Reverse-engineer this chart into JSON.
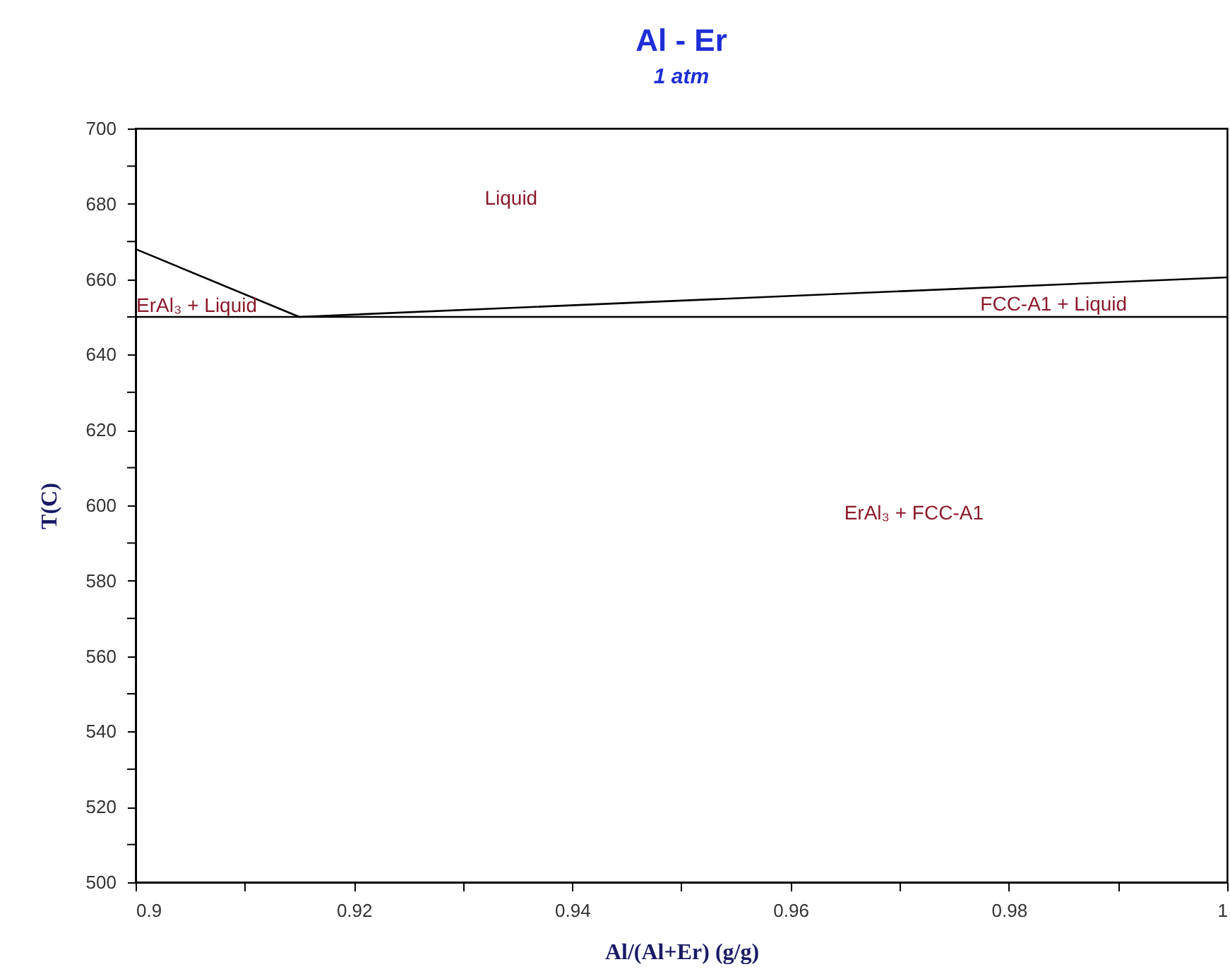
{
  "chart_data": {
    "type": "line",
    "title": "Al - Er",
    "subtitle": "1 atm",
    "xlabel": "Al/(Al+Er) (g/g)",
    "ylabel": "T(C)",
    "series": [
      {
        "color": "#000000",
        "x": [
          0.9,
          0.915,
          1.0
        ],
        "values": [
          668,
          650,
          660.5
        ]
      }
    ],
    "ref_lines": [
      {
        "axis": "y",
        "value": 650,
        "color": "#000000"
      }
    ],
    "xlim": [
      0.9,
      1.0
    ],
    "ylim": [
      500,
      700
    ],
    "xticks": [
      0.9,
      {
        "value": 0.91,
        "label": null
      },
      0.92,
      {
        "value": 0.93,
        "label": null
      },
      0.94,
      {
        "value": 0.95,
        "label": null
      },
      0.96,
      {
        "value": 0.97,
        "label": null
      },
      0.98,
      {
        "value": 0.99,
        "label": null
      },
      1
    ],
    "yticks": [
      500,
      {
        "value": 510,
        "label": null
      },
      520,
      {
        "value": 530,
        "label": null
      },
      540,
      {
        "value": 550,
        "label": null
      },
      560,
      {
        "value": 570,
        "label": null
      },
      580,
      {
        "value": 590,
        "label": null
      },
      600,
      {
        "value": 610,
        "label": null
      },
      620,
      {
        "value": 630,
        "label": null
      },
      640,
      {
        "value": 650,
        "label": null
      },
      660,
      {
        "value": 670,
        "label": null
      },
      680,
      {
        "value": 690,
        "label": null
      },
      700
    ],
    "annotations": [
      "Liquid",
      "ErAl₃ + Liquid",
      "FCC-A1 + Liquid",
      "ErAl₃ + FCC-A1"
    ]
  }
}
